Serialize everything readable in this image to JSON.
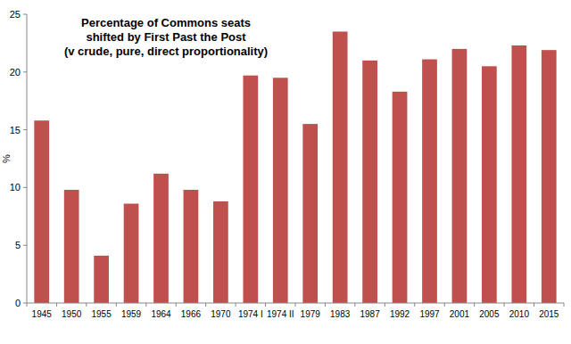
{
  "chart_data": {
    "type": "bar",
    "title": "Percentage of Commons seats shifted by First Past the Post",
    "subtitle": "(v crude, pure, direct proportionality)",
    "ylabel": "%",
    "categories": [
      "1945",
      "1950",
      "1955",
      "1959",
      "1964",
      "1966",
      "1970",
      "1974 I",
      "1974 II",
      "1979",
      "1983",
      "1987",
      "1992",
      "1997",
      "2001",
      "2005",
      "2010",
      "2015"
    ],
    "values": [
      15.8,
      9.8,
      4.1,
      8.6,
      11.2,
      9.8,
      8.8,
      19.7,
      19.5,
      15.5,
      23.5,
      21.0,
      18.3,
      21.1,
      22.0,
      20.5,
      22.3,
      21.9
    ],
    "color": "#c0504d",
    "ylim": [
      0,
      25
    ],
    "yticks": [
      0,
      5,
      10,
      15,
      20,
      25
    ],
    "grid": false
  }
}
